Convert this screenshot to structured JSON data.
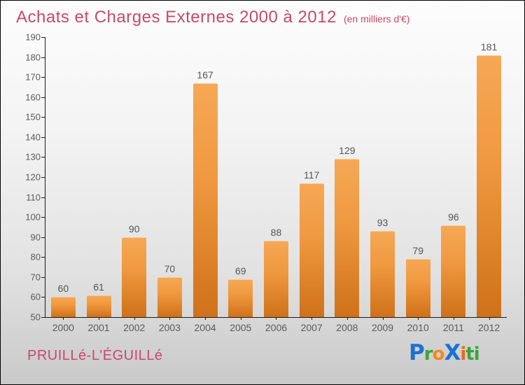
{
  "title": {
    "text": "Achats et Charges Externes 2000 à 2012",
    "subtitle": "(en milliers d'€)"
  },
  "chart_data": {
    "type": "bar",
    "categories": [
      "2000",
      "2001",
      "2002",
      "2003",
      "2004",
      "2005",
      "2006",
      "2007",
      "2008",
      "2009",
      "2010",
      "2011",
      "2012"
    ],
    "values": [
      60,
      61,
      90,
      70,
      167,
      69,
      88,
      117,
      129,
      93,
      79,
      96,
      181
    ],
    "title": "Achats et Charges Externes 2000 à 2012",
    "subtitle": "(en milliers d'€)",
    "xlabel": "",
    "ylabel": "",
    "ylim": [
      50,
      190
    ],
    "ytick_step": 10,
    "grid": false,
    "legend": "none",
    "value_labels": true,
    "bar_color_top": "#f6a855",
    "bar_color_bottom": "#cf711a"
  },
  "footer": {
    "location": "PRUILLé-L'ÉGUILLé"
  },
  "logo": {
    "name": "Proxiti",
    "letters": [
      {
        "ch": "P",
        "color": "#1b72d3",
        "big": true
      },
      {
        "ch": "r",
        "color": "#3aa53a",
        "big": false
      },
      {
        "ch": "o",
        "color": "#f6871d",
        "big": false
      },
      {
        "ch": "X",
        "color": "#1b72d3",
        "big": true
      },
      {
        "ch": "i",
        "color": "#ee6a12",
        "big": false
      },
      {
        "ch": "t",
        "color": "#3aa53a",
        "big": false
      },
      {
        "ch": "i",
        "color": "#3aa53a",
        "big": false
      }
    ]
  },
  "colors": {
    "title": "#c9486b",
    "axis": "#1a1a1a",
    "tick_label": "#5a5a5a",
    "value_label": "#555555",
    "bg_top": "#fdfdfd",
    "bg_bottom": "#c9c9c9"
  }
}
